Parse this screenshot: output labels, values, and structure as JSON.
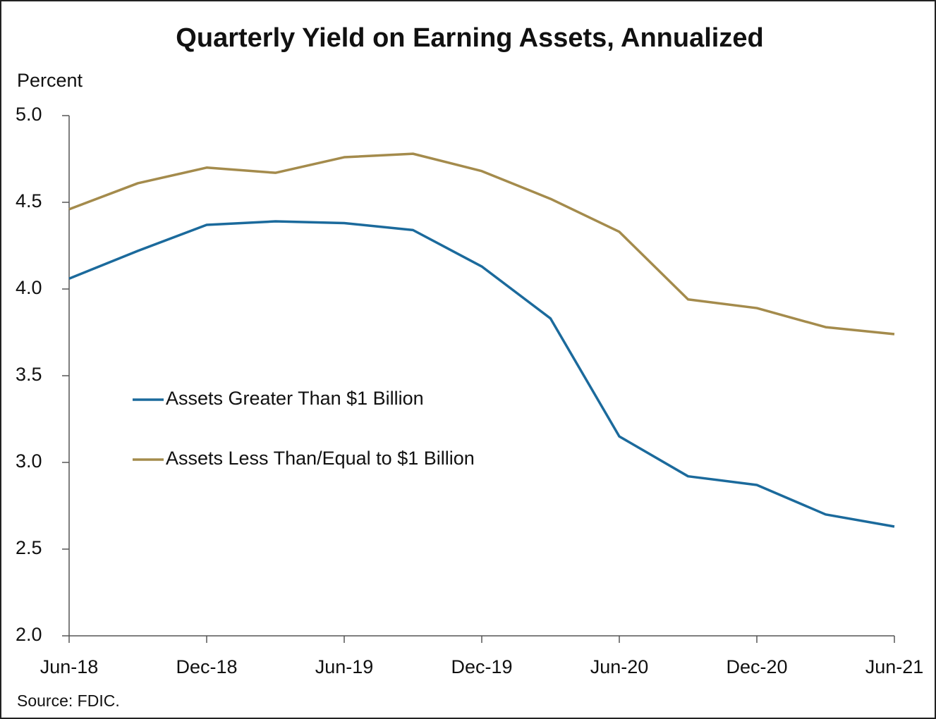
{
  "chart_data": {
    "type": "line",
    "title": "Quarterly Yield on Earning Assets, Annualized",
    "y_label": "Percent",
    "source": "Source: FDIC.",
    "categories": [
      "Jun-18",
      null,
      "Dec-18",
      null,
      "Jun-19",
      null,
      "Dec-19",
      null,
      "Jun-20",
      null,
      "Dec-20",
      null,
      "Jun-21"
    ],
    "series": [
      {
        "name": "Assets Greater Than $1 Billion",
        "color": "#1b6a9c",
        "values": [
          4.06,
          4.22,
          4.37,
          4.39,
          4.38,
          4.34,
          4.13,
          3.83,
          3.15,
          2.92,
          2.87,
          2.7,
          2.63
        ]
      },
      {
        "name": "Assets Less Than/Equal to $1 Billion",
        "color": "#a48b4c",
        "values": [
          4.46,
          4.61,
          4.7,
          4.67,
          4.76,
          4.78,
          4.68,
          4.52,
          4.33,
          3.94,
          3.89,
          3.78,
          3.74
        ]
      }
    ],
    "ylim": [
      2.0,
      5.0
    ],
    "yticks": [
      {
        "value": 2.0,
        "label": "2.0"
      },
      2.5,
      {
        "value": 3.0,
        "label": "3.0"
      },
      3.5,
      {
        "value": 4.0,
        "label": "4.0"
      },
      4.5,
      {
        "value": 5.0,
        "label": "5.0"
      }
    ],
    "grid": false
  }
}
